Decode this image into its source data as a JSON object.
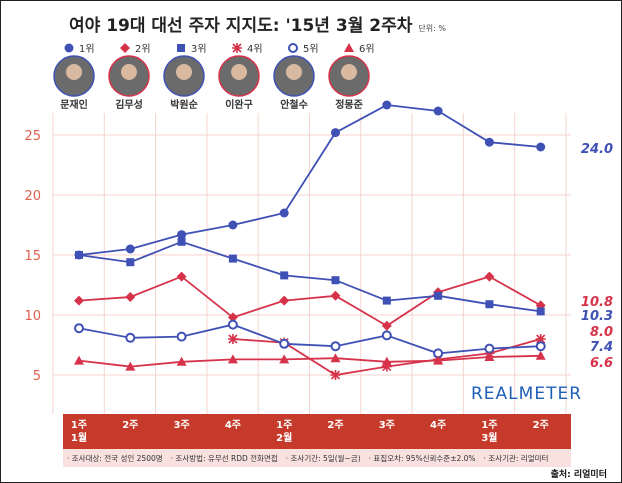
{
  "title": "여야 19대 대선 주자 지지도: '15년 3월 2주차",
  "unit": "단위: %",
  "legend": [
    {
      "label": "1위",
      "marker": "filled-circle",
      "color": "#3f51b5"
    },
    {
      "label": "2위",
      "marker": "diamond",
      "color": "#d6334a"
    },
    {
      "label": "3위",
      "marker": "square",
      "color": "#3f51b5"
    },
    {
      "label": "4위",
      "marker": "asterisk",
      "color": "#d6334a"
    },
    {
      "label": "5위",
      "marker": "open-circle",
      "color": "#3f51b5"
    },
    {
      "label": "6위",
      "marker": "triangle",
      "color": "#d6334a"
    }
  ],
  "candidates": [
    {
      "name": "문재인",
      "ring": "#3f51b5"
    },
    {
      "name": "김무성",
      "ring": "#d6334a"
    },
    {
      "name": "박원순",
      "ring": "#3f51b5"
    },
    {
      "name": "이완구",
      "ring": "#d6334a"
    },
    {
      "name": "안철수",
      "ring": "#3f51b5"
    },
    {
      "name": "정몽준",
      "ring": "#d6334a"
    }
  ],
  "watermark": "REALMETER",
  "footer": {
    "items": [
      "· 조사대상: 전국 성인 2500명",
      "· 조사방법: 유무선 RDD 전화면접",
      "· 조사기간: 5일(월~금)",
      "· 표집오차: 95%신뢰수준±2.0%",
      "· 조사기관: 리얼미터"
    ],
    "source": "출처: 리얼미터"
  },
  "chart_data": {
    "type": "line",
    "categories": [
      [
        "1주",
        "1월"
      ],
      [
        "2주",
        ""
      ],
      [
        "3주",
        ""
      ],
      [
        "4주",
        ""
      ],
      [
        "1주",
        "2월"
      ],
      [
        "2주",
        ""
      ],
      [
        "3주",
        ""
      ],
      [
        "4주",
        ""
      ],
      [
        "1주",
        "3월"
      ],
      [
        "2주",
        ""
      ]
    ],
    "ylim": [
      3,
      28
    ],
    "yticks": [
      5,
      10,
      15,
      20,
      25
    ],
    "grid": true,
    "series": [
      {
        "name": "1위",
        "color": "#3f51b5",
        "marker": "filled-circle",
        "values": [
          15.0,
          15.5,
          16.7,
          17.5,
          18.5,
          25.2,
          27.5,
          27.0,
          24.4,
          24.0
        ],
        "end_label": "24.0"
      },
      {
        "name": "2위",
        "color": "#d6334a",
        "marker": "diamond",
        "values": [
          11.2,
          11.5,
          13.2,
          9.8,
          11.2,
          11.6,
          9.1,
          11.9,
          13.2,
          10.8
        ],
        "end_label": "10.8"
      },
      {
        "name": "3위",
        "color": "#3f51b5",
        "marker": "square",
        "values": [
          15.0,
          14.4,
          16.1,
          14.7,
          13.3,
          12.9,
          11.2,
          11.6,
          10.9,
          10.3
        ],
        "end_label": "10.3"
      },
      {
        "name": "4위",
        "color": "#d6334a",
        "marker": "asterisk",
        "values": [
          null,
          null,
          null,
          8.0,
          7.7,
          5.0,
          5.7,
          6.3,
          6.8,
          8.0
        ],
        "end_label": "8.0"
      },
      {
        "name": "5위",
        "color": "#3f51b5",
        "marker": "open-circle",
        "values": [
          8.9,
          8.1,
          8.2,
          9.2,
          7.6,
          7.4,
          8.3,
          6.8,
          7.2,
          7.4
        ],
        "end_label": "7.4"
      },
      {
        "name": "6위",
        "color": "#d6334a",
        "marker": "triangle",
        "values": [
          6.2,
          5.7,
          6.1,
          6.3,
          6.3,
          6.4,
          6.1,
          6.2,
          6.5,
          6.6
        ],
        "end_label": "6.6"
      }
    ]
  }
}
